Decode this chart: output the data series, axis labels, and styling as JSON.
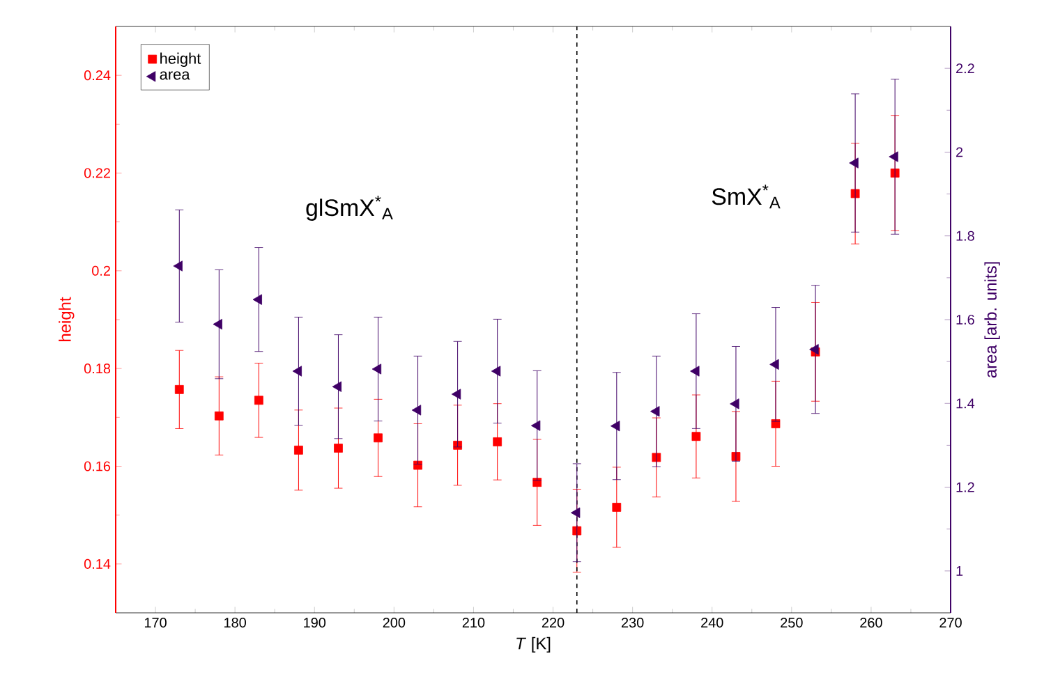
{
  "chart_data": {
    "type": "scatter",
    "xlabel": "*T* [K]",
    "ylabel": "height",
    "y2label": "area [arb. units]",
    "x": [
      173,
      178,
      183,
      188,
      193,
      198,
      203,
      208,
      213,
      218,
      223,
      228,
      233,
      238,
      243,
      248,
      253,
      258,
      263
    ],
    "series": [
      {
        "name": "height",
        "marker": "square",
        "color": "#ff0000",
        "values": [
          0.1757,
          0.1703,
          0.1735,
          0.1633,
          0.1637,
          0.1658,
          0.1602,
          0.1643,
          0.165,
          0.1567,
          0.1468,
          0.1516,
          0.1618,
          0.1661,
          0.162,
          0.1687,
          0.1834,
          0.2158,
          0.22
        ],
        "errors": [
          0.008,
          0.008,
          0.0076,
          0.0082,
          0.0082,
          0.0079,
          0.0085,
          0.0082,
          0.0078,
          0.0088,
          0.0085,
          0.0082,
          0.0081,
          0.0085,
          0.0092,
          0.0087,
          0.0101,
          0.0103,
          0.0118
        ]
      },
      {
        "name": "area",
        "marker": "triangle",
        "axis": "y2",
        "color": "#3f0066",
        "values": [
          1.728,
          1.589,
          1.648,
          1.477,
          1.44,
          1.482,
          1.384,
          1.422,
          1.477,
          1.347,
          1.139,
          1.346,
          1.381,
          1.477,
          1.399,
          1.493,
          1.529,
          1.974,
          1.989
        ],
        "errors": [
          0.134,
          0.13,
          0.124,
          0.129,
          0.124,
          0.124,
          0.129,
          0.126,
          0.124,
          0.131,
          0.117,
          0.128,
          0.132,
          0.137,
          0.137,
          0.136,
          0.153,
          0.165,
          0.185
        ]
      }
    ],
    "xlim": [
      165,
      270
    ],
    "xticks": [
      170,
      180,
      190,
      200,
      210,
      220,
      230,
      240,
      250,
      260,
      270
    ],
    "ylim": [
      0.13,
      0.25
    ],
    "yticks": [
      0.14,
      0.16,
      0.18,
      0.2,
      0.22,
      0.24
    ],
    "y2lim": [
      0.9,
      2.3
    ],
    "y2ticks": [
      1,
      1.2,
      1.4,
      1.6,
      1.8,
      2,
      2.2
    ],
    "ref_lines": [
      {
        "axis": "x",
        "value": 223,
        "color": "#000000",
        "line_style": "dashed"
      }
    ],
    "annotations": [
      "glSmX$^{*}$$_{A}$",
      "SmX$^{*}$$_{A}$"
    ],
    "legend": "top left"
  }
}
